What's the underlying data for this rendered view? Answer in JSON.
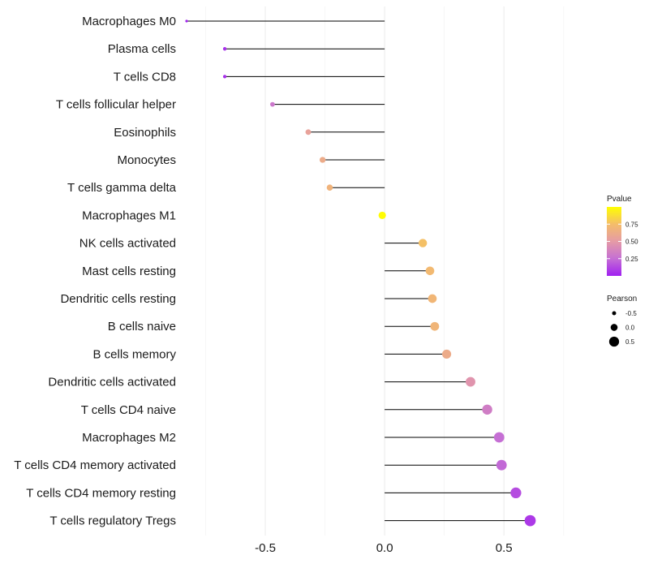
{
  "chart_data": {
    "type": "lollipop",
    "title": "",
    "xlabel": "",
    "ylabel": "",
    "xlim": [
      -0.83,
      0.87
    ],
    "xticks": [
      -0.5,
      0.0,
      0.5
    ],
    "xtick_labels": [
      "-0.5",
      "0.0",
      "0.5"
    ],
    "grid": true,
    "categories": [
      "Macrophages M0",
      "Plasma cells",
      "T cells CD8",
      "T cells follicular helper",
      "Eosinophils",
      "Monocytes",
      "T cells gamma delta",
      "Macrophages M1",
      "NK cells activated",
      "Mast cells resting",
      "Dendritic cells resting",
      "B cells naive",
      "B cells memory",
      "Dendritic cells activated",
      "T cells CD4 naive",
      "Macrophages M2",
      "T cells CD4 memory activated",
      "T cells CD4 memory resting",
      "T cells regulatory  Tregs"
    ],
    "pearson": [
      -0.83,
      -0.67,
      -0.67,
      -0.47,
      -0.32,
      -0.26,
      -0.23,
      -0.01,
      0.16,
      0.19,
      0.2,
      0.21,
      0.26,
      0.36,
      0.43,
      0.48,
      0.49,
      0.55,
      0.61
    ],
    "pvalue": [
      0.01,
      0.05,
      0.05,
      0.3,
      0.55,
      0.62,
      0.68,
      0.99,
      0.76,
      0.72,
      0.7,
      0.69,
      0.62,
      0.46,
      0.33,
      0.25,
      0.23,
      0.14,
      0.08
    ],
    "legend_pvalue": {
      "title": "Pvalue",
      "ticks": [
        0.75,
        0.5,
        0.25
      ],
      "tick_labels": [
        "0.75",
        "0.50",
        "0.25"
      ],
      "range": [
        0.0,
        1.0
      ],
      "colors": [
        "#a020f0",
        "#c56fd4",
        "#e59ba6",
        "#f4bd6a",
        "#ffff00"
      ]
    },
    "legend_pearson": {
      "title": "Pearson",
      "values": [
        -0.5,
        0.0,
        0.5
      ],
      "labels": [
        "-0.5",
        "0.0",
        "0.5"
      ]
    }
  }
}
